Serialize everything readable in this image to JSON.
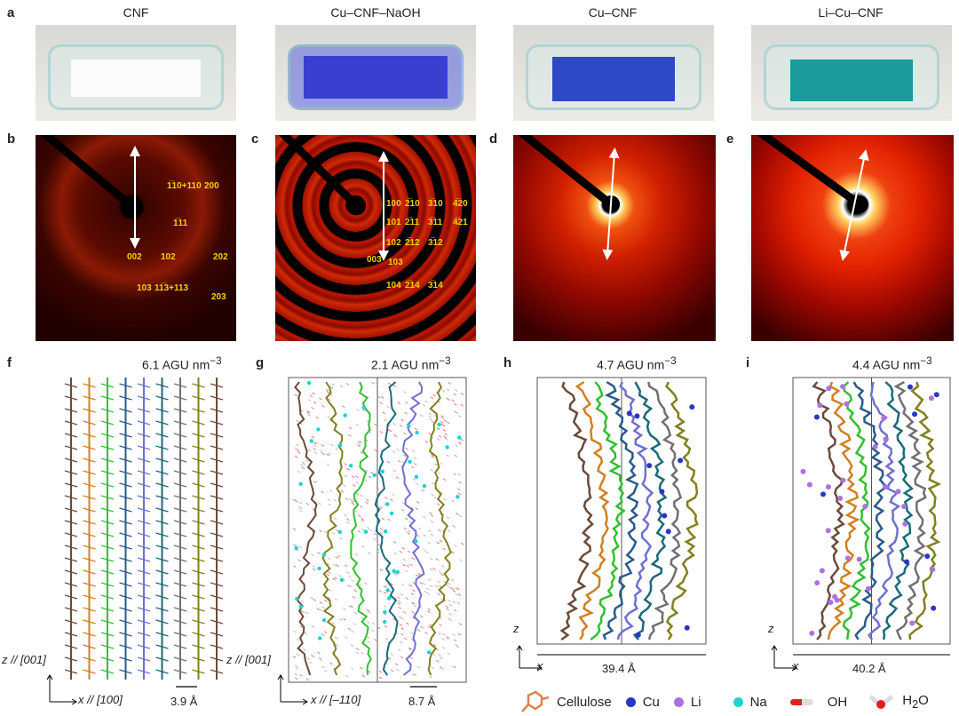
{
  "panels": {
    "a": {
      "label": "a",
      "titles": [
        "CNF",
        "Cu–CNF–NaOH",
        "Cu–CNF",
        "Li–Cu–CNF"
      ],
      "sheet_colors": [
        "#ffffff",
        "#3a3fd0",
        "#2f48c8",
        "#1a9a9a"
      ]
    },
    "b": {
      "label": "b",
      "peaks": [
        "1̅10+110",
        "200",
        "1̅11",
        "002",
        "102",
        "202",
        "103",
        "11̅3+113",
        "203"
      ]
    },
    "c": {
      "label": "c",
      "peaks": [
        "100",
        "2̅10",
        "3̅10",
        "4̅20",
        "101",
        "2̅11",
        "3̅11",
        "4̅21",
        "102",
        "2̅12",
        "3̅12",
        "003",
        "103",
        "104",
        "2̅14",
        "3̅14"
      ]
    },
    "d": {
      "label": "d"
    },
    "e": {
      "label": "e"
    },
    "f": {
      "label": "f",
      "density": "6.1 AGU nm",
      "z_axis": "z // [001]",
      "x_axis": "x // [100]",
      "spacing": "3.9 Å"
    },
    "g": {
      "label": "g",
      "density": "2.1 AGU nm",
      "z_axis": "z // [001]",
      "x_axis": "x // [–110]",
      "spacing": "8.7 Å"
    },
    "h": {
      "label": "h",
      "density": "4.7 AGU nm",
      "z_axis": "z",
      "x_axis": "x",
      "width": "39.4 Å"
    },
    "i": {
      "label": "i",
      "density": "4.4 AGU nm",
      "z_axis": "z",
      "x_axis": "x",
      "width": "40.2 Å"
    },
    "density_exponent": "−3"
  },
  "legend": {
    "cellulose": "Cellulose",
    "cu": "Cu",
    "li": "Li",
    "na": "Na",
    "oh": "OH",
    "h2o": "H",
    "h2o_sub": "2",
    "h2o_end": "O"
  },
  "colors": {
    "cellulose": "#e0824a",
    "cu": "#2a35c8",
    "li": "#b070e0",
    "na": "#20d0d0",
    "oh": "#e02020",
    "chains": [
      "#6b4a3a",
      "#d08020",
      "#30c030",
      "#2a5a8a",
      "#7070d0",
      "#1a6a7a",
      "#707070",
      "#808020"
    ]
  }
}
